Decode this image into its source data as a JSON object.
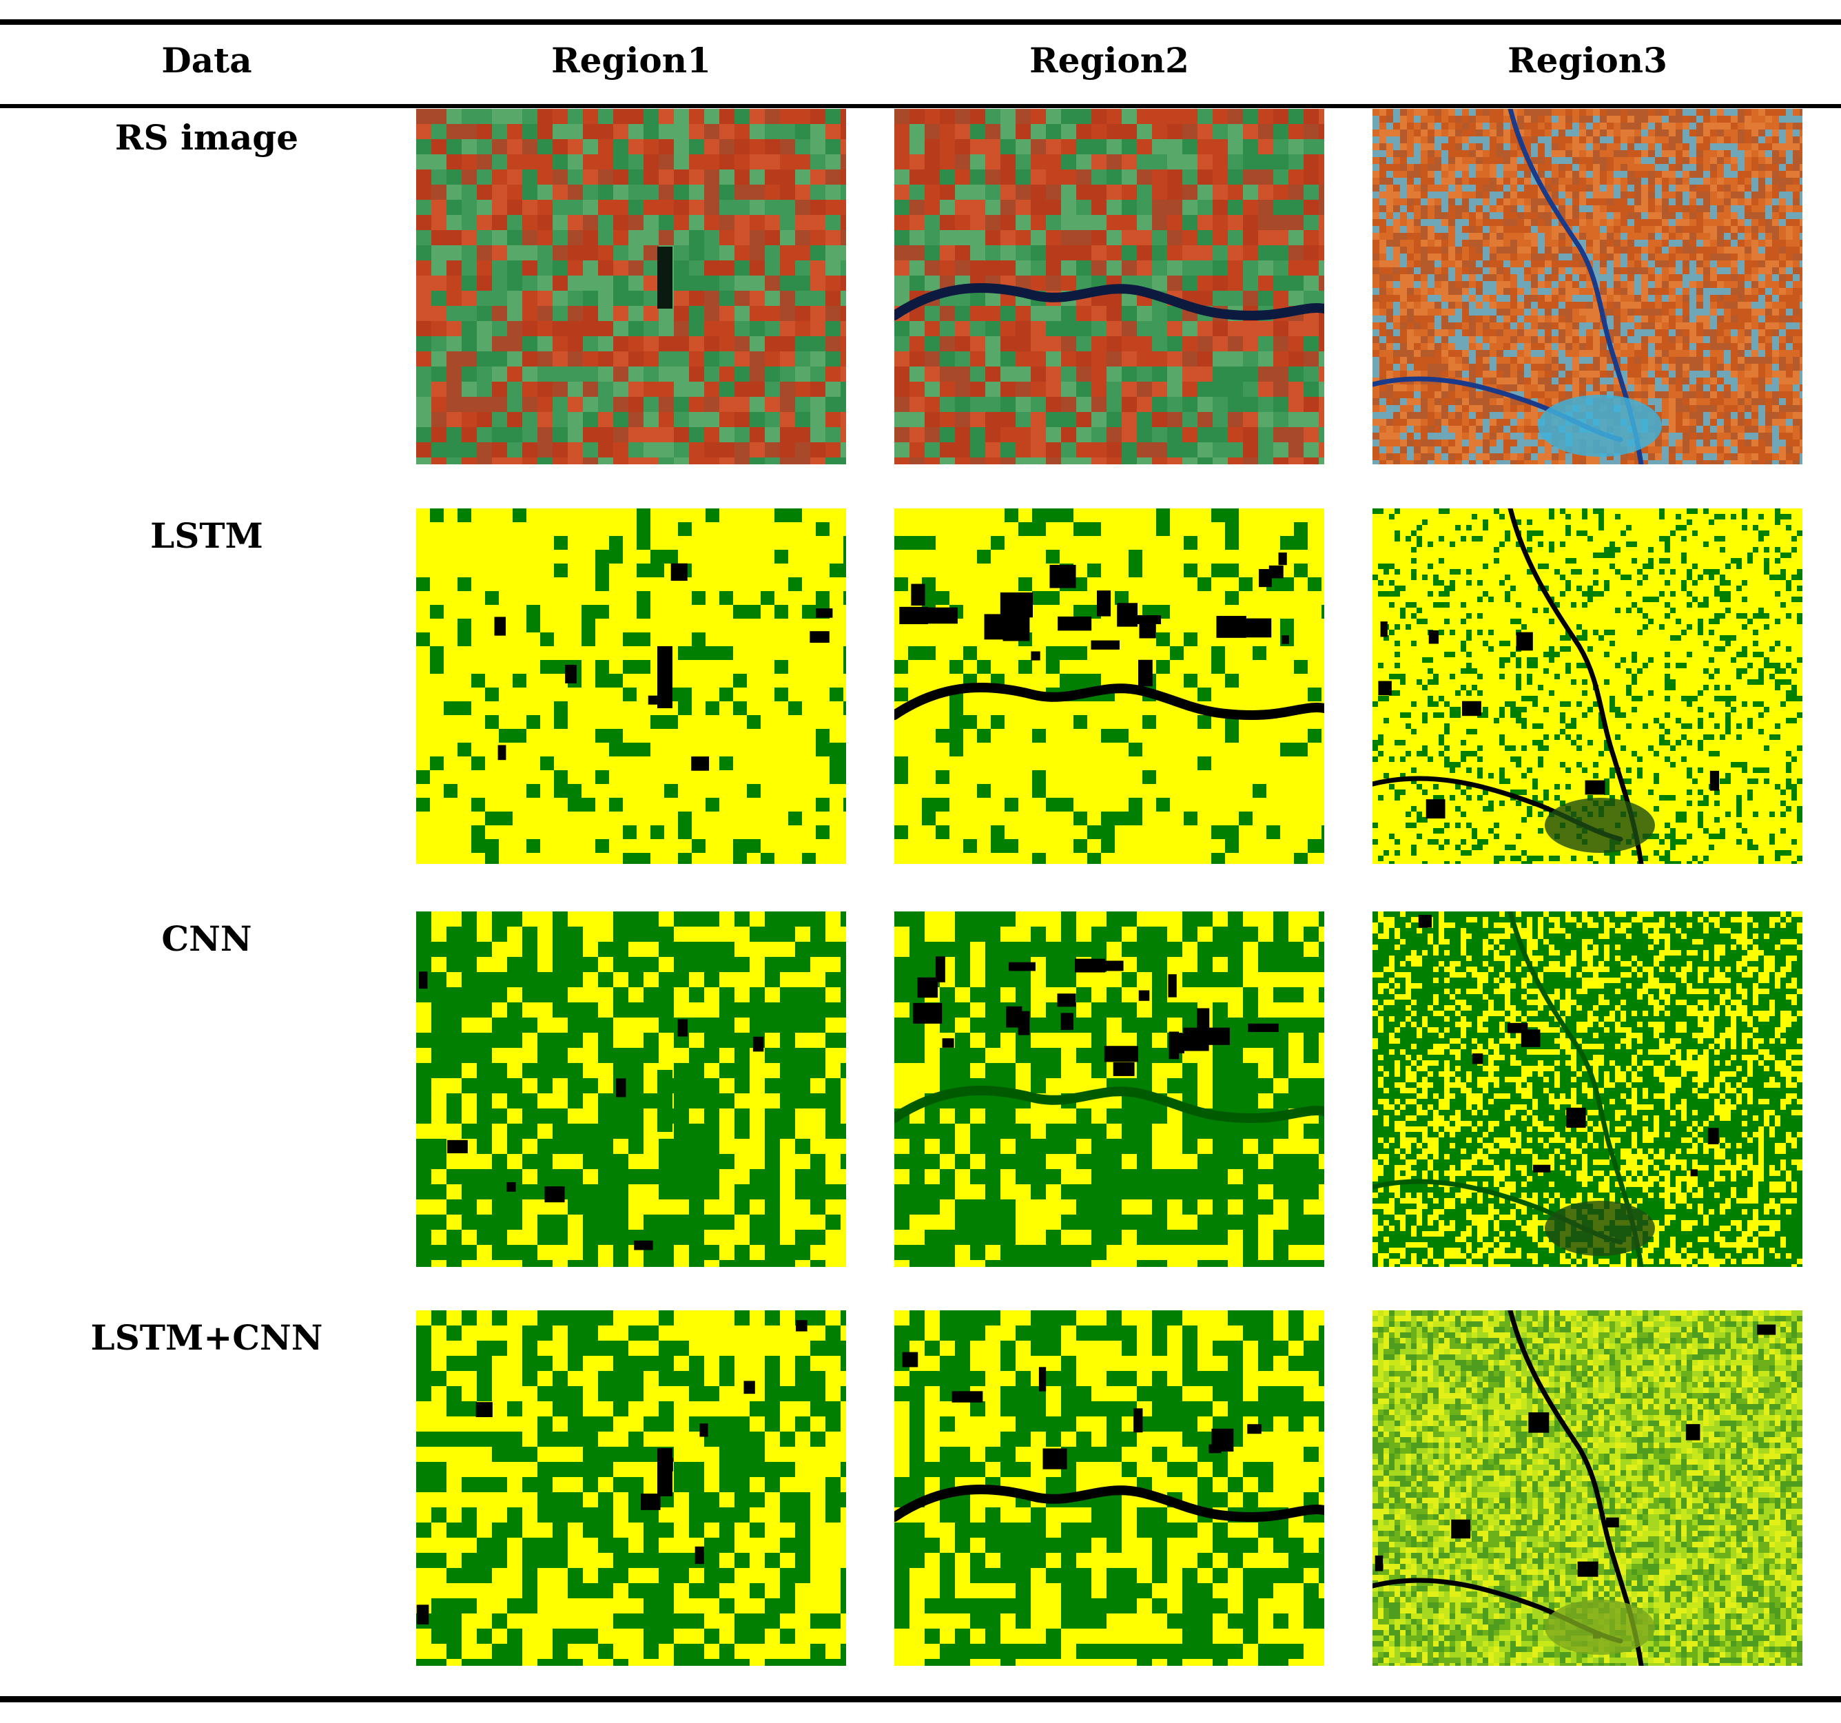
{
  "table": {
    "header": {
      "col0": "Data",
      "col1": "Region1",
      "col2": "Region2",
      "col3": "Region3"
    },
    "rows": [
      {
        "label": "RS image"
      },
      {
        "label": "LSTM"
      },
      {
        "label": "CNN"
      },
      {
        "label": "LSTM+CNN"
      }
    ]
  },
  "colors": {
    "crop_yellow": "#ffff00",
    "vegetation_green": "#007f00",
    "background_black": "#000000",
    "rs_red": "#c4431f",
    "rs_green": "#3f9a5a",
    "rs_water_blue": "#3fb0d8"
  }
}
